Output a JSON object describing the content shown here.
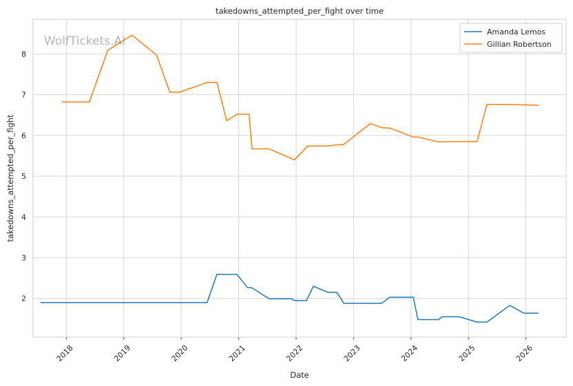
{
  "chart_data": {
    "type": "line",
    "title": "takedowns_attempted_per_fight over time",
    "xlabel": "Date",
    "ylabel": "takedowns_attempted_per_fight",
    "watermark": "WolfTickets.AI",
    "xlim": [
      2017.42,
      2026.7
    ],
    "ylim": [
      1.05,
      8.85
    ],
    "x_ticks": [
      2018,
      2019,
      2020,
      2021,
      2022,
      2023,
      2024,
      2025,
      2026
    ],
    "x_tick_labels": [
      "2018",
      "2019",
      "2020",
      "2021",
      "2022",
      "2023",
      "2024",
      "2025",
      "2026"
    ],
    "y_ticks": [
      2,
      3,
      4,
      5,
      6,
      7,
      8
    ],
    "y_tick_labels": [
      "2",
      "3",
      "4",
      "5",
      "6",
      "7",
      "8"
    ],
    "grid": true,
    "legend_position": "top-right",
    "series": [
      {
        "name": "Amanda Lemos",
        "color": "#1f77b4",
        "points": [
          [
            2017.55,
            1.9
          ],
          [
            2020.45,
            1.9
          ],
          [
            2020.62,
            2.59
          ],
          [
            2020.97,
            2.59
          ],
          [
            2021.15,
            2.27
          ],
          [
            2021.23,
            2.26
          ],
          [
            2021.53,
            1.99
          ],
          [
            2021.93,
            1.99
          ],
          [
            2021.96,
            1.95
          ],
          [
            2022.18,
            1.95
          ],
          [
            2022.3,
            2.3
          ],
          [
            2022.55,
            2.15
          ],
          [
            2022.71,
            2.15
          ],
          [
            2022.83,
            1.88
          ],
          [
            2023.37,
            1.88
          ],
          [
            2023.49,
            1.88
          ],
          [
            2023.63,
            2.03
          ],
          [
            2024.04,
            2.03
          ],
          [
            2024.12,
            1.48
          ],
          [
            2024.48,
            1.48
          ],
          [
            2024.54,
            1.55
          ],
          [
            2024.84,
            1.55
          ],
          [
            2025.15,
            1.42
          ],
          [
            2025.32,
            1.42
          ],
          [
            2025.72,
            1.83
          ],
          [
            2025.96,
            1.64
          ],
          [
            2026.22,
            1.64
          ]
        ]
      },
      {
        "name": "Gillian Robertson",
        "color": "#ff7f0e",
        "points": [
          [
            2017.92,
            6.82
          ],
          [
            2018.4,
            6.82
          ],
          [
            2018.72,
            8.09
          ],
          [
            2019.14,
            8.46
          ],
          [
            2019.57,
            7.97
          ],
          [
            2019.8,
            7.06
          ],
          [
            2019.97,
            7.06
          ],
          [
            2020.45,
            7.3
          ],
          [
            2020.62,
            7.3
          ],
          [
            2020.79,
            6.36
          ],
          [
            2020.97,
            6.52
          ],
          [
            2021.18,
            6.52
          ],
          [
            2021.23,
            5.67
          ],
          [
            2021.53,
            5.67
          ],
          [
            2021.97,
            5.4
          ],
          [
            2022.2,
            5.74
          ],
          [
            2022.55,
            5.74
          ],
          [
            2022.72,
            5.77
          ],
          [
            2022.82,
            5.77
          ],
          [
            2023.29,
            6.29
          ],
          [
            2023.49,
            6.19
          ],
          [
            2023.63,
            6.18
          ],
          [
            2024.04,
            5.96
          ],
          [
            2024.12,
            5.96
          ],
          [
            2024.48,
            5.84
          ],
          [
            2024.84,
            5.85
          ],
          [
            2025.15,
            5.85
          ],
          [
            2025.32,
            6.76
          ],
          [
            2025.72,
            6.76
          ],
          [
            2026.22,
            6.74
          ]
        ]
      }
    ]
  }
}
